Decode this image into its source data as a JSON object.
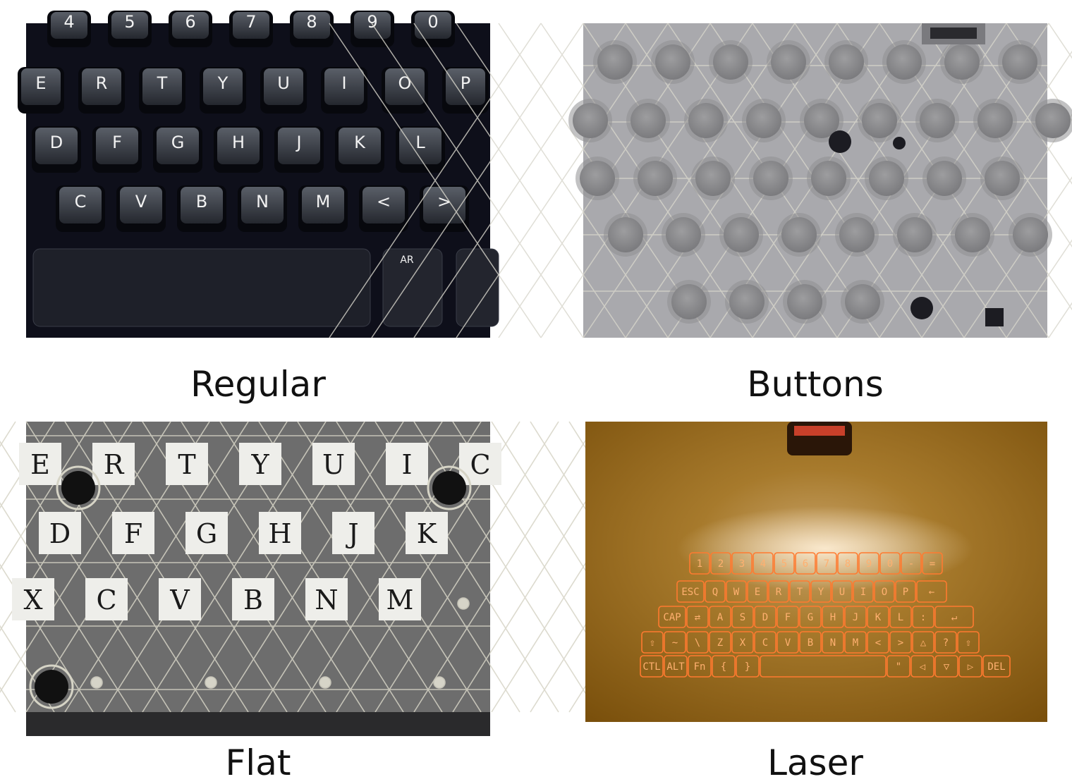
{
  "panels": [
    {
      "caption": "Regular",
      "keys": {
        "numbers": [
          "4",
          "5",
          "6",
          "7",
          "8",
          "9",
          "0"
        ],
        "row_q": [
          "E",
          "R",
          "T",
          "Y",
          "U",
          "I",
          "O",
          "P"
        ],
        "row_a": [
          "D",
          "F",
          "G",
          "H",
          "J",
          "K",
          "L"
        ],
        "row_z": [
          "C",
          "V",
          "B",
          "N",
          "M",
          "<",
          ">"
        ],
        "alt": "AR"
      }
    },
    {
      "caption": "Buttons"
    },
    {
      "caption": "Flat",
      "keys": {
        "row_q": [
          "E",
          "R",
          "T",
          "Y",
          "U",
          "I",
          "C"
        ],
        "row_a": [
          "D",
          "F",
          "G",
          "H",
          "J",
          "K"
        ],
        "row_z": [
          "X",
          "C",
          "V",
          "B",
          "N",
          "M"
        ]
      }
    },
    {
      "caption": "Laser",
      "keys": {
        "row1": [
          "1",
          "2",
          "3",
          "4",
          "5",
          "6",
          "7",
          "8",
          "9",
          "0",
          "-",
          "="
        ],
        "row2": [
          "ESC",
          "Q",
          "W",
          "E",
          "R",
          "T",
          "Y",
          "U",
          "I",
          "O",
          "P",
          "←"
        ],
        "row3": [
          "CAP",
          "⇄",
          "A",
          "S",
          "D",
          "F",
          "G",
          "H",
          "J",
          "K",
          "L",
          ":",
          "↵"
        ],
        "row4": [
          "⇧",
          "~",
          "\\",
          "Z",
          "X",
          "C",
          "V",
          "B",
          "N",
          "M",
          "<",
          ">",
          "△",
          "?",
          "⇧"
        ],
        "row5": [
          "CTL",
          "ALT",
          "Fn",
          "{",
          "}",
          "",
          "\"",
          "◁",
          "▽",
          "▷",
          "DEL"
        ]
      }
    }
  ],
  "colors": {
    "regular_bg": "#0e0f1a",
    "buttons_bg": "#a9a9ad",
    "flat_bg": "#6d6d6d",
    "laser_bg": "#8a5a0e",
    "laser_glow": "#ff7a30"
  }
}
